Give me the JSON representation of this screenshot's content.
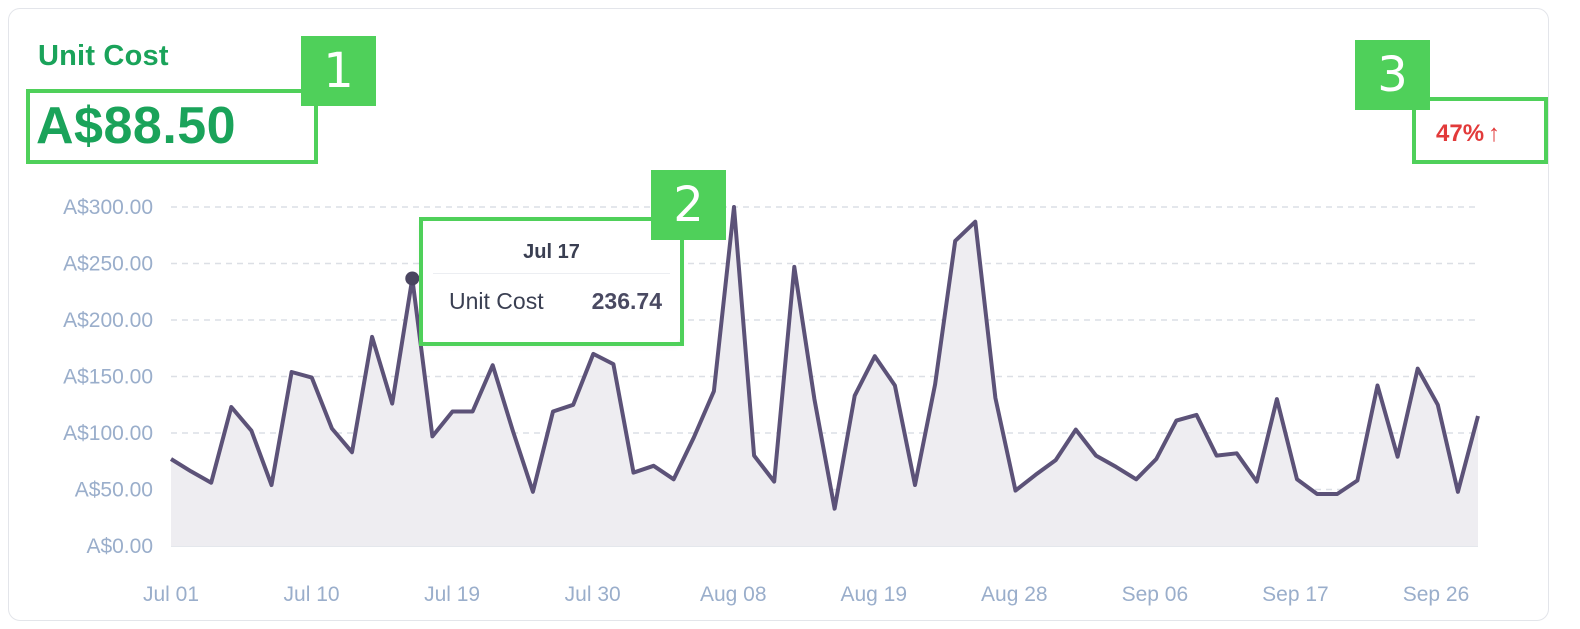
{
  "metric": {
    "title": "Unit Cost",
    "value": "A$88.50",
    "change_label": "47%",
    "change_arrow": "↑",
    "change_color": "#e23a3a",
    "accent_color": "#1aa35a"
  },
  "tooltip": {
    "date": "Jul 17",
    "series_name": "Unit Cost",
    "value": "236.74"
  },
  "annotations": [
    "1",
    "2",
    "3"
  ],
  "chart_data": {
    "type": "area",
    "ylabel": "",
    "xlabel": "",
    "ylim": [
      0,
      300
    ],
    "y_ticks": [
      0,
      50,
      100,
      150,
      200,
      250,
      300
    ],
    "y_tick_labels": [
      "A$0.00",
      "A$50.00",
      "A$100.00",
      "A$150.00",
      "A$200.00",
      "A$250.00",
      "A$300.00"
    ],
    "x_tick_labels": [
      "Jul 01",
      "Jul 10",
      "Jul 19",
      "Jul 30",
      "Aug 08",
      "Aug 19",
      "Aug 28",
      "Sep 06",
      "Sep 17",
      "Sep 26"
    ],
    "grid": true,
    "line_color": "#5c5278",
    "fill_color": "#eeedf1",
    "highlight_index": 12,
    "series": [
      {
        "values": [
          77,
          66,
          56,
          123,
          102,
          54,
          154,
          149,
          104,
          83,
          185,
          126,
          236.74,
          97,
          119,
          119,
          160,
          102,
          48,
          119,
          125,
          170,
          161,
          65,
          71,
          59,
          96,
          137,
          300,
          80,
          57,
          247,
          130,
          33,
          133,
          168,
          142,
          54,
          143,
          270,
          287,
          131,
          49,
          63,
          76,
          103,
          80,
          70,
          59,
          77,
          111,
          116,
          80,
          82,
          57,
          130,
          59,
          46,
          46,
          58,
          142,
          79,
          157,
          125,
          48,
          115
        ]
      }
    ]
  }
}
